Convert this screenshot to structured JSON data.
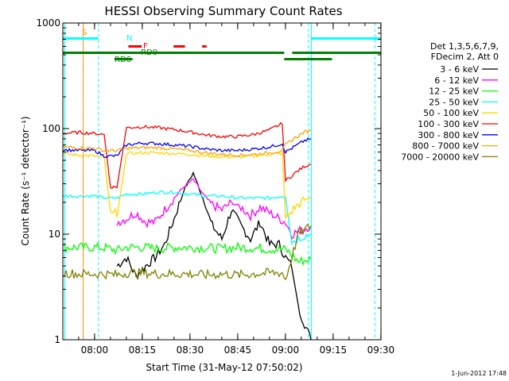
{
  "chart_data": {
    "type": "line",
    "title": "HESSI Observing Summary Count Rates",
    "xlabel": "Start Time (31-May-12 07:50:02)",
    "ylabel": "Count Rate (s⁻¹ detector⁻¹)",
    "x_range_minutes": [
      0,
      100
    ],
    "xlim": [
      "07:50:02",
      "09:30:02"
    ],
    "ylim": [
      1,
      1000
    ],
    "yscale": "log",
    "x_ticks": [
      {
        "min": 9.97,
        "label": "08:00"
      },
      {
        "min": 24.97,
        "label": "08:15"
      },
      {
        "min": 39.97,
        "label": "08:30"
      },
      {
        "min": 54.97,
        "label": "08:45"
      },
      {
        "min": 69.97,
        "label": "09:00"
      },
      {
        "min": 84.97,
        "label": "09:15"
      },
      {
        "min": 99.97,
        "label": "09:30"
      }
    ],
    "y_ticks": [
      {
        "value": 1,
        "label": "1"
      },
      {
        "value": 10,
        "label": "10"
      },
      {
        "value": 100,
        "label": "100"
      },
      {
        "value": 1000,
        "label": "1000"
      }
    ],
    "legend_header": [
      "Det 1,3,5,6,7,9,",
      "FDecim 2, Att 0"
    ],
    "legend_position": "right",
    "timestamp": "1-Jun-2012 17:48",
    "series": [
      {
        "name": "3 - 6 keV",
        "color": "#000000",
        "points": [
          [
            17,
            5
          ],
          [
            20,
            6
          ],
          [
            23,
            4
          ],
          [
            26,
            5
          ],
          [
            29,
            6
          ],
          [
            32,
            8
          ],
          [
            35,
            14
          ],
          [
            38,
            26
          ],
          [
            41,
            38
          ],
          [
            44,
            22
          ],
          [
            47,
            12
          ],
          [
            50,
            9
          ],
          [
            53,
            17
          ],
          [
            56,
            12
          ],
          [
            59,
            9
          ],
          [
            62,
            13
          ],
          [
            65,
            8
          ],
          [
            68,
            8
          ],
          [
            70,
            6
          ],
          [
            72,
            5
          ],
          [
            74,
            2
          ],
          [
            78,
            1
          ]
        ]
      },
      {
        "name": "6 - 12 keV",
        "color": "#ff00ff",
        "points": [
          [
            17,
            13
          ],
          [
            20,
            14
          ],
          [
            23,
            16
          ],
          [
            26,
            13
          ],
          [
            29,
            13
          ],
          [
            32,
            17
          ],
          [
            35,
            22
          ],
          [
            38,
            28
          ],
          [
            41,
            33
          ],
          [
            44,
            24
          ],
          [
            47,
            19
          ],
          [
            50,
            17
          ],
          [
            53,
            20
          ],
          [
            56,
            18
          ],
          [
            59,
            15
          ],
          [
            62,
            18
          ],
          [
            65,
            16
          ],
          [
            68,
            14
          ],
          [
            70,
            13
          ],
          [
            72,
            10
          ],
          [
            75,
            11
          ],
          [
            78,
            12
          ]
        ]
      },
      {
        "name": "12 - 25 keV",
        "color": "#00ff00",
        "points": [
          [
            0,
            7.5
          ],
          [
            5,
            7.5
          ],
          [
            10,
            7.5
          ],
          [
            14,
            7.4
          ],
          [
            17,
            7
          ],
          [
            20,
            7.5
          ],
          [
            25,
            7.5
          ],
          [
            30,
            7.3
          ],
          [
            35,
            7.5
          ],
          [
            40,
            7.5
          ],
          [
            45,
            7.4
          ],
          [
            50,
            7.3
          ],
          [
            55,
            7.5
          ],
          [
            60,
            7.4
          ],
          [
            65,
            7.2
          ],
          [
            69,
            7.2
          ],
          [
            70,
            7.2
          ],
          [
            74,
            5.5
          ],
          [
            78,
            5.8
          ]
        ]
      },
      {
        "name": "25 - 50 keV",
        "color": "#00ffff",
        "points": [
          [
            0,
            23
          ],
          [
            5,
            23
          ],
          [
            10,
            23
          ],
          [
            13,
            22
          ],
          [
            17,
            22
          ],
          [
            20,
            24
          ],
          [
            25,
            24
          ],
          [
            30,
            25
          ],
          [
            35,
            25
          ],
          [
            40,
            24
          ],
          [
            45,
            23
          ],
          [
            50,
            23
          ],
          [
            55,
            22
          ],
          [
            60,
            22
          ],
          [
            65,
            22
          ],
          [
            69,
            23
          ],
          [
            70,
            23
          ],
          [
            72,
            8.5
          ],
          [
            75,
            9.5
          ],
          [
            78,
            10
          ]
        ]
      },
      {
        "name": "50 - 100 keV",
        "color": "#ffd700",
        "points": [
          [
            0,
            58
          ],
          [
            5,
            56
          ],
          [
            10,
            55
          ],
          [
            13,
            53
          ],
          [
            15,
            15
          ],
          [
            17,
            16
          ],
          [
            20,
            58
          ],
          [
            25,
            59
          ],
          [
            30,
            59
          ],
          [
            35,
            58
          ],
          [
            40,
            57
          ],
          [
            45,
            55
          ],
          [
            50,
            54
          ],
          [
            55,
            54
          ],
          [
            60,
            55
          ],
          [
            65,
            57
          ],
          [
            69,
            58
          ],
          [
            70,
            14
          ],
          [
            73,
            18
          ],
          [
            76,
            21
          ],
          [
            78,
            22
          ]
        ]
      },
      {
        "name": "100 - 300 keV",
        "color": "#ff0000",
        "points": [
          [
            0,
            90
          ],
          [
            5,
            92
          ],
          [
            10,
            90
          ],
          [
            13,
            88
          ],
          [
            15,
            28
          ],
          [
            17,
            28
          ],
          [
            20,
            102
          ],
          [
            25,
            104
          ],
          [
            30,
            102
          ],
          [
            35,
            98
          ],
          [
            40,
            93
          ],
          [
            45,
            87
          ],
          [
            50,
            84
          ],
          [
            55,
            84
          ],
          [
            60,
            88
          ],
          [
            65,
            97
          ],
          [
            69,
            112
          ],
          [
            70,
            32
          ],
          [
            73,
            38
          ],
          [
            76,
            44
          ],
          [
            78,
            46
          ]
        ]
      },
      {
        "name": "300 - 800 keV",
        "color": "#0000ff",
        "points": [
          [
            0,
            63
          ],
          [
            5,
            62
          ],
          [
            10,
            62
          ],
          [
            13,
            55
          ],
          [
            17,
            55
          ],
          [
            20,
            70
          ],
          [
            25,
            73
          ],
          [
            30,
            72
          ],
          [
            35,
            70
          ],
          [
            40,
            68
          ],
          [
            45,
            64
          ],
          [
            50,
            62
          ],
          [
            55,
            62
          ],
          [
            60,
            64
          ],
          [
            65,
            67
          ],
          [
            69,
            72
          ],
          [
            70,
            60
          ],
          [
            73,
            68
          ],
          [
            76,
            77
          ],
          [
            78,
            80
          ]
        ]
      },
      {
        "name": "800 - 7000 keV",
        "color": "#ffa500",
        "points": [
          [
            0,
            67
          ],
          [
            5,
            66
          ],
          [
            10,
            65
          ],
          [
            13,
            62
          ],
          [
            17,
            62
          ],
          [
            20,
            65
          ],
          [
            25,
            66
          ],
          [
            30,
            66
          ],
          [
            35,
            64
          ],
          [
            40,
            62
          ],
          [
            45,
            59
          ],
          [
            50,
            57
          ],
          [
            55,
            56
          ],
          [
            60,
            57
          ],
          [
            65,
            59
          ],
          [
            69,
            62
          ],
          [
            70,
            70
          ],
          [
            73,
            82
          ],
          [
            76,
            93
          ],
          [
            78,
            95
          ]
        ]
      },
      {
        "name": "7000 - 20000 keV",
        "color": "#808000",
        "points": [
          [
            0,
            4.3
          ],
          [
            5,
            4.2
          ],
          [
            10,
            4.2
          ],
          [
            13,
            4.2
          ],
          [
            17,
            4.1
          ],
          [
            20,
            4.3
          ],
          [
            25,
            4.3
          ],
          [
            30,
            4.2
          ],
          [
            35,
            4.2
          ],
          [
            40,
            4.2
          ],
          [
            45,
            4.1
          ],
          [
            50,
            4.2
          ],
          [
            55,
            4.1
          ],
          [
            60,
            4.2
          ],
          [
            65,
            4.3
          ],
          [
            69,
            4.3
          ],
          [
            70,
            3.7
          ],
          [
            74,
            10
          ],
          [
            78,
            12
          ]
        ]
      }
    ],
    "flag_bars": [
      {
        "label": "S",
        "color": "#ff8c00",
        "start": null,
        "end": null
      },
      {
        "label": "N",
        "color": "#00ffff",
        "segments": [
          [
            0,
            11.1
          ],
          [
            78.1,
            100
          ]
        ]
      },
      {
        "label": "F",
        "color": "#ff0000",
        "segments": [
          [
            20.6,
            24.8
          ],
          [
            34.8,
            38.4
          ],
          [
            43.8,
            45.2
          ]
        ]
      },
      {
        "label": "RD0",
        "color": "#008000",
        "segments": [
          [
            0,
            69.6
          ],
          [
            72.1,
            100
          ]
        ]
      },
      {
        "label": "RD6",
        "color": "#008000",
        "segments": [
          [
            16.2,
            21.9
          ],
          [
            69.6,
            84.6
          ]
        ]
      }
    ],
    "vertical_lines": [
      {
        "min": 0.6,
        "color": "#00ffff",
        "style": "solid"
      },
      {
        "min": 6.4,
        "color": "#ff8c00",
        "style": "solid"
      },
      {
        "min": 11.2,
        "color": "#00ffff",
        "style": "dashed"
      },
      {
        "min": 77.2,
        "color": "#00ffff",
        "style": "dashed"
      },
      {
        "min": 78.1,
        "color": "#00ffff",
        "style": "solid"
      },
      {
        "min": 98.1,
        "color": "#00ffff",
        "style": "dashed"
      }
    ]
  }
}
